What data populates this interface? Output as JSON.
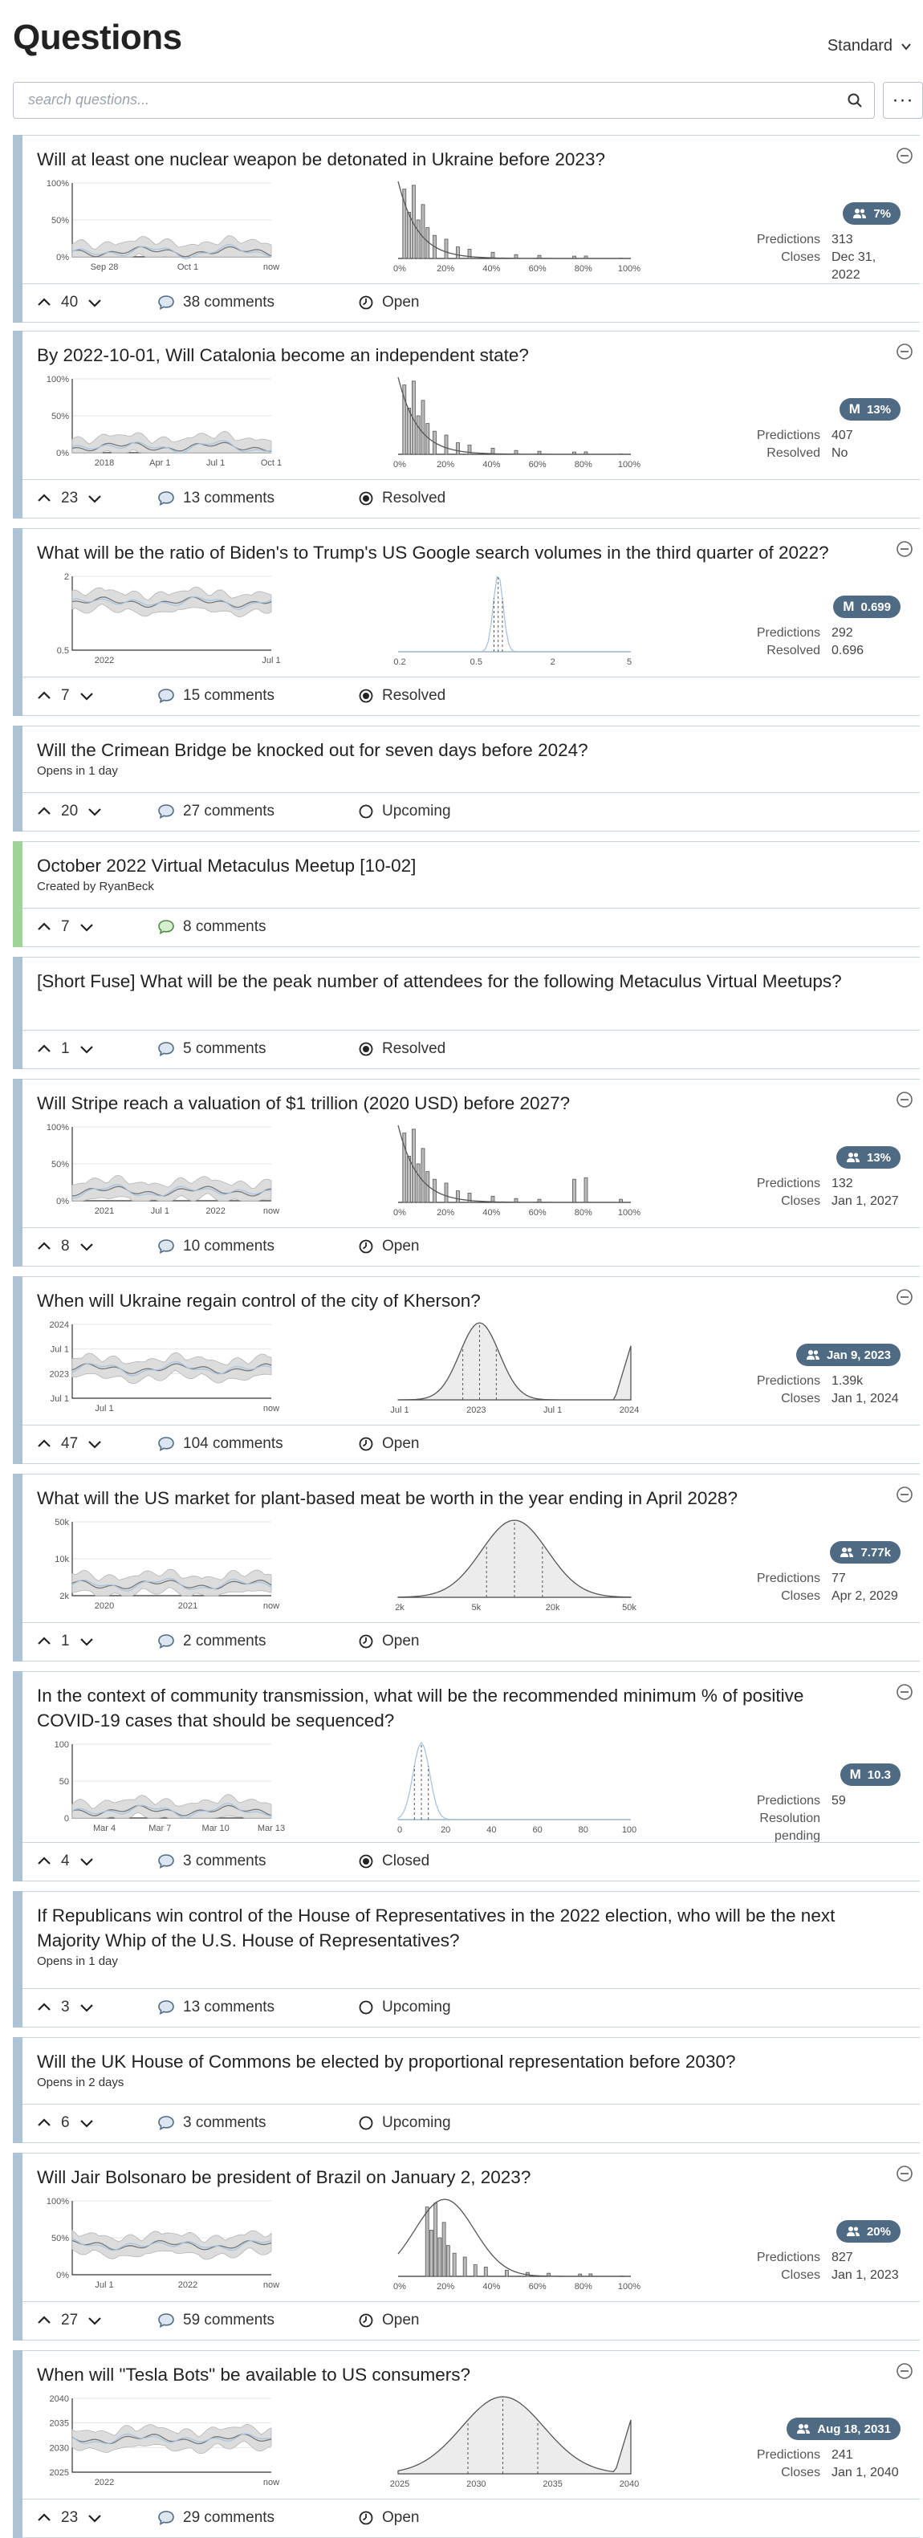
{
  "header": {
    "title": "Questions",
    "sort_label": "Standard"
  },
  "search": {
    "placeholder": "search questions..."
  },
  "more_label": "···",
  "questions": [
    {
      "title": "Will at least one nuclear weapon be detonated in Ukraine before 2023?",
      "votes": "40",
      "comments": "38 comments",
      "status": "Open",
      "badge": "7%",
      "badge_kind": "community",
      "stat1_k": "Predictions",
      "stat1_v": "313",
      "stat2_k": "Closes",
      "stat2_v": "Dec 31, 2022",
      "ts_y": [
        "100%",
        "50%",
        "0%"
      ],
      "ts_x": [
        "Sep 28",
        "Oct 1",
        "now"
      ],
      "dist_x": [
        "0%",
        "20%",
        "40%",
        "60%",
        "80%",
        "100%"
      ]
    },
    {
      "title": "By 2022-10-01, Will Catalonia become an independent state?",
      "votes": "23",
      "comments": "13 comments",
      "status": "Resolved",
      "badge": "13%",
      "badge_kind": "metaculus",
      "badge_m": "M",
      "stat1_k": "Predictions",
      "stat1_v": "407",
      "stat2_k": "Resolved",
      "stat2_v": "No",
      "ts_y": [
        "100%",
        "50%",
        "0%"
      ],
      "ts_x": [
        "2018",
        "Apr 1",
        "Jul 1",
        "Oct 1"
      ],
      "dist_x": [
        "0%",
        "20%",
        "40%",
        "60%",
        "80%",
        "100%"
      ]
    },
    {
      "title": "What will be the ratio of Biden's to Trump's US Google search volumes in the third quarter of 2022?",
      "votes": "7",
      "comments": "15 comments",
      "status": "Resolved",
      "badge": "0.699",
      "badge_kind": "metaculus",
      "badge_m": "M",
      "stat1_k": "Predictions",
      "stat1_v": "292",
      "stat2_k": "Resolved",
      "stat2_v": "0.696",
      "ts_y": [
        "2",
        "0.5"
      ],
      "ts_x": [
        "2022",
        "Jul 1"
      ],
      "dist_x": [
        "0.2",
        "0.5",
        "2",
        "5"
      ]
    },
    {
      "title": "Will the Crimean Bridge be knocked out for seven days before 2024?",
      "sub": "Opens in 1 day",
      "votes": "20",
      "comments": "27 comments",
      "status": "Upcoming"
    },
    {
      "title": "October 2022 Virtual Metaculus Meetup [10-02]",
      "sub": "Created by RyanBeck",
      "votes": "7",
      "comments": "8 comments"
    },
    {
      "title": "[Short Fuse] What will be the peak number of attendees for the following Metaculus Virtual Meetups?",
      "votes": "1",
      "comments": "5 comments",
      "status": "Resolved"
    },
    {
      "title": "Will Stripe reach a valuation of $1 trillion (2020 USD) before 2027?",
      "votes": "8",
      "comments": "10 comments",
      "status": "Open",
      "badge": "13%",
      "badge_kind": "community",
      "stat1_k": "Predictions",
      "stat1_v": "132",
      "stat2_k": "Closes",
      "stat2_v": "Jan 1, 2027",
      "ts_y": [
        "100%",
        "50%",
        "0%"
      ],
      "ts_x": [
        "2021",
        "Jul 1",
        "2022",
        "now"
      ],
      "dist_x": [
        "0%",
        "20%",
        "40%",
        "60%",
        "80%",
        "100%"
      ]
    },
    {
      "title": "When will Ukraine regain control of the city of Kherson?",
      "votes": "47",
      "comments": "104 comments",
      "status": "Open",
      "badge": "Jan 9, 2023",
      "badge_kind": "community",
      "stat1_k": "Predictions",
      "stat1_v": "1.39k",
      "stat2_k": "Closes",
      "stat2_v": "Jan 1, 2024",
      "ts_y": [
        "2024",
        "Jul 1",
        "2023",
        "Jul 1"
      ],
      "ts_x": [
        "Jul 1",
        "now"
      ],
      "dist_x": [
        "Jul 1",
        "2023",
        "Jul 1",
        "2024"
      ]
    },
    {
      "title": "What will the US market for plant-based meat be worth in the year ending in April 2028?",
      "votes": "1",
      "comments": "2 comments",
      "status": "Open",
      "badge": "7.77k",
      "badge_kind": "community",
      "stat1_k": "Predictions",
      "stat1_v": "77",
      "stat2_k": "Closes",
      "stat2_v": "Apr 2, 2029",
      "ts_y": [
        "50k",
        "10k",
        "2k"
      ],
      "ts_x": [
        "2020",
        "2021",
        "now"
      ],
      "dist_x": [
        "2k",
        "5k",
        "20k",
        "50k"
      ]
    },
    {
      "title": "In the context of community transmission, what will be the recommended minimum % of positive COVID-19 cases that should be sequenced?",
      "votes": "4",
      "comments": "3 comments",
      "status": "Closed",
      "badge": "10.3",
      "badge_kind": "metaculus",
      "badge_m": "M",
      "stat1_k": "Predictions",
      "stat1_v": "59",
      "stat2_k": "Resolution",
      "stat2_v": "",
      "stat3_k": "pending",
      "ts_y": [
        "100",
        "50",
        "0"
      ],
      "ts_x": [
        "Mar 4",
        "Mar 7",
        "Mar 10",
        "Mar 13"
      ],
      "dist_x": [
        "0",
        "20",
        "40",
        "60",
        "80",
        "100"
      ]
    },
    {
      "title": "If Republicans win control of the House of Representatives in the 2022 election, who will be the next Majority Whip of the U.S. House of Representatives?",
      "sub": "Opens in 1 day",
      "votes": "3",
      "comments": "13 comments",
      "status": "Upcoming"
    },
    {
      "title": "Will the UK House of Commons be elected by proportional representation before 2030?",
      "sub": "Opens in 2 days",
      "votes": "6",
      "comments": "3 comments",
      "status": "Upcoming"
    },
    {
      "title": "Will Jair Bolsonaro be president of Brazil on January 2, 2023?",
      "votes": "27",
      "comments": "59 comments",
      "status": "Open",
      "badge": "20%",
      "badge_kind": "community",
      "stat1_k": "Predictions",
      "stat1_v": "827",
      "stat2_k": "Closes",
      "stat2_v": "Jan 1, 2023",
      "ts_y": [
        "100%",
        "50%",
        "0%"
      ],
      "ts_x": [
        "Jul 1",
        "2022",
        "now"
      ],
      "dist_x": [
        "0%",
        "20%",
        "40%",
        "60%",
        "80%",
        "100%"
      ]
    },
    {
      "title": "When will \"Tesla Bots\" be available to US consumers?",
      "votes": "23",
      "comments": "29 comments",
      "status": "Open",
      "badge": "Aug 18, 2031",
      "badge_kind": "community",
      "stat1_k": "Predictions",
      "stat1_v": "241",
      "stat2_k": "Closes",
      "stat2_v": "Jan 1, 2040",
      "ts_y": [
        "2040",
        "2035",
        "2030",
        "2025"
      ],
      "ts_x": [
        "2022",
        "now"
      ],
      "dist_x": [
        "2025",
        "2030",
        "2035",
        "2040"
      ]
    }
  ],
  "colors": {
    "stripe": "#aec2d6",
    "discussion_stripe": "#9fd397",
    "badge": "#4f6a83",
    "border": "#c9d3dc",
    "prediction_line": "#a8c4e0"
  }
}
